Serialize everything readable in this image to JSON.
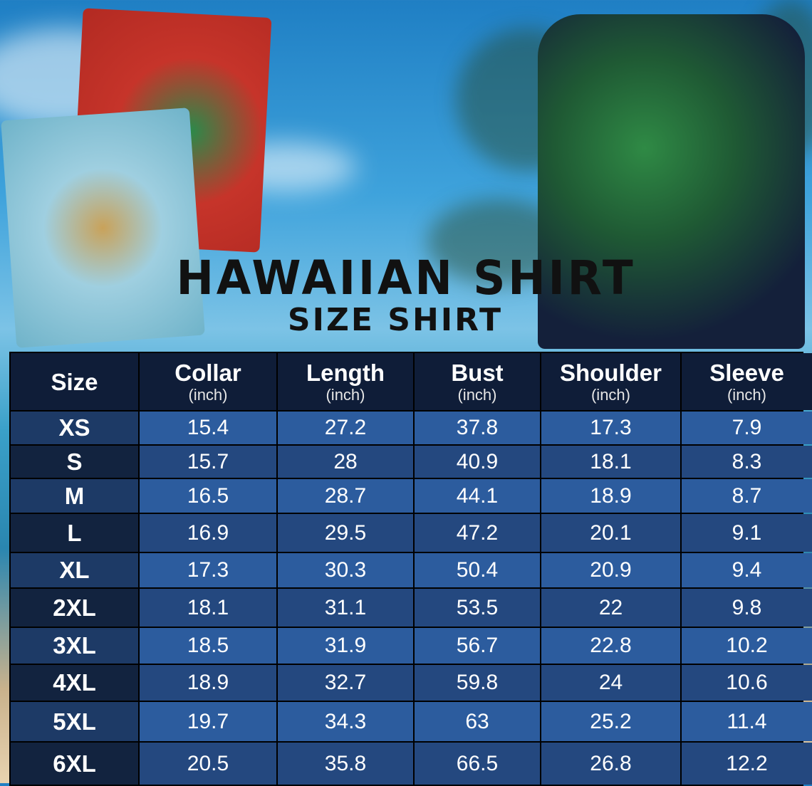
{
  "title": "HAWAIIAN SHIRT",
  "subtitle": "SIZE SHIRT",
  "colors": {
    "header_bg": "#0f1d38",
    "row_light": "#2c5c9e",
    "row_dark": "#24487f",
    "size_col_light": "#1d3a66",
    "size_col_dark": "#12233f"
  },
  "table": {
    "columns": [
      {
        "label": "Size",
        "unit": ""
      },
      {
        "label": "Collar",
        "unit": "(inch)"
      },
      {
        "label": "Length",
        "unit": "(inch)"
      },
      {
        "label": "Bust",
        "unit": "(inch)"
      },
      {
        "label": "Shoulder",
        "unit": "(inch)"
      },
      {
        "label": "Sleeve",
        "unit": "(inch)"
      }
    ],
    "rows": [
      [
        "XS",
        "15.4",
        "27.2",
        "37.8",
        "17.3",
        "7.9"
      ],
      [
        "S",
        "15.7",
        "28",
        "40.9",
        "18.1",
        "8.3"
      ],
      [
        "M",
        "16.5",
        "28.7",
        "44.1",
        "18.9",
        "8.7"
      ],
      [
        "L",
        "16.9",
        "29.5",
        "47.2",
        "20.1",
        "9.1"
      ],
      [
        "XL",
        "17.3",
        "30.3",
        "50.4",
        "20.9",
        "9.4"
      ],
      [
        "2XL",
        "18.1",
        "31.1",
        "53.5",
        "22",
        "9.8"
      ],
      [
        "3XL",
        "18.5",
        "31.9",
        "56.7",
        "22.8",
        "10.2"
      ],
      [
        "4XL",
        "18.9",
        "32.7",
        "59.8",
        "24",
        "10.6"
      ],
      [
        "5XL",
        "19.7",
        "34.3",
        "63",
        "25.2",
        "11.4"
      ],
      [
        "6XL",
        "20.5",
        "35.8",
        "66.5",
        "26.8",
        "12.2"
      ]
    ]
  }
}
